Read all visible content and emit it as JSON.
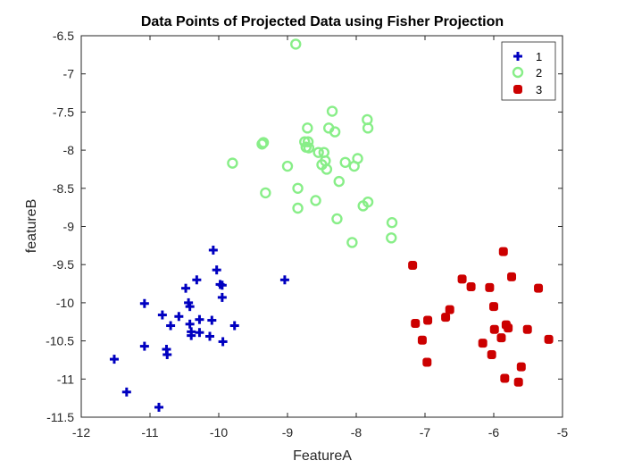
{
  "chart_data": {
    "type": "scatter",
    "title": "Data Points of Projected Data using Fisher Projection",
    "xlabel": "FeatureA",
    "ylabel": "featureB",
    "xlim": [
      -12,
      -5
    ],
    "ylim": [
      -11.5,
      -6.5
    ],
    "xticks": [
      "-12",
      "-11",
      "-10",
      "-9",
      "-8",
      "-7",
      "-6",
      "-5"
    ],
    "yticks": [
      "-6.5",
      "-7",
      "-7.5",
      "-8",
      "-8.5",
      "-9",
      "-9.5",
      "-10",
      "-10.5",
      "-11",
      "-11.5"
    ],
    "grid": false,
    "legend_position": "top-right",
    "series": [
      {
        "name": "1",
        "marker": "plus",
        "color": "#0000c0",
        "points": [
          [
            -11.52,
            -10.74
          ],
          [
            -11.34,
            -11.17
          ],
          [
            -11.08,
            -10.01
          ],
          [
            -11.08,
            -10.57
          ],
          [
            -10.87,
            -11.37
          ],
          [
            -10.82,
            -10.16
          ],
          [
            -10.76,
            -10.61
          ],
          [
            -10.75,
            -10.68
          ],
          [
            -10.7,
            -10.3
          ],
          [
            -10.58,
            -10.18
          ],
          [
            -10.48,
            -9.81
          ],
          [
            -10.44,
            -10.0
          ],
          [
            -10.42,
            -10.05
          ],
          [
            -10.42,
            -10.28
          ],
          [
            -10.4,
            -10.38
          ],
          [
            -10.4,
            -10.43
          ],
          [
            -10.32,
            -9.7
          ],
          [
            -10.28,
            -10.22
          ],
          [
            -10.28,
            -10.39
          ],
          [
            -10.13,
            -10.44
          ],
          [
            -10.1,
            -10.23
          ],
          [
            -10.08,
            -9.31
          ],
          [
            -10.03,
            -9.57
          ],
          [
            -9.98,
            -9.76
          ],
          [
            -9.95,
            -9.77
          ],
          [
            -9.95,
            -9.93
          ],
          [
            -9.94,
            -10.51
          ],
          [
            -9.77,
            -10.3
          ],
          [
            -9.04,
            -9.7
          ]
        ]
      },
      {
        "name": "2",
        "marker": "circle",
        "color": "#88ee88",
        "points": [
          [
            -9.8,
            -8.17
          ],
          [
            -9.37,
            -7.92
          ],
          [
            -9.35,
            -7.9
          ],
          [
            -9.32,
            -8.56
          ],
          [
            -9.0,
            -8.21
          ],
          [
            -8.88,
            -6.61
          ],
          [
            -8.85,
            -8.5
          ],
          [
            -8.85,
            -8.76
          ],
          [
            -8.75,
            -7.89
          ],
          [
            -8.73,
            -7.96
          ],
          [
            -8.71,
            -7.71
          ],
          [
            -8.7,
            -7.89
          ],
          [
            -8.69,
            -7.97
          ],
          [
            -8.59,
            -8.66
          ],
          [
            -8.55,
            -8.03
          ],
          [
            -8.5,
            -8.19
          ],
          [
            -8.47,
            -8.03
          ],
          [
            -8.45,
            -8.14
          ],
          [
            -8.43,
            -8.25
          ],
          [
            -8.4,
            -7.71
          ],
          [
            -8.35,
            -7.49
          ],
          [
            -8.31,
            -7.76
          ],
          [
            -8.28,
            -8.9
          ],
          [
            -8.25,
            -8.41
          ],
          [
            -8.16,
            -8.16
          ],
          [
            -8.06,
            -9.21
          ],
          [
            -8.03,
            -8.21
          ],
          [
            -7.98,
            -8.11
          ],
          [
            -7.9,
            -8.73
          ],
          [
            -7.84,
            -7.6
          ],
          [
            -7.83,
            -7.71
          ],
          [
            -7.83,
            -8.68
          ],
          [
            -7.48,
            -8.95
          ],
          [
            -7.49,
            -9.15
          ]
        ]
      },
      {
        "name": "3",
        "marker": "square",
        "color": "#cc0000",
        "points": [
          [
            -7.18,
            -9.51
          ],
          [
            -7.14,
            -10.27
          ],
          [
            -7.04,
            -10.49
          ],
          [
            -6.97,
            -10.78
          ],
          [
            -6.96,
            -10.23
          ],
          [
            -6.7,
            -10.19
          ],
          [
            -6.64,
            -10.09
          ],
          [
            -6.46,
            -9.69
          ],
          [
            -6.33,
            -9.79
          ],
          [
            -6.16,
            -10.53
          ],
          [
            -6.06,
            -9.8
          ],
          [
            -6.03,
            -10.68
          ],
          [
            -6.0,
            -10.05
          ],
          [
            -5.99,
            -10.35
          ],
          [
            -5.89,
            -10.46
          ],
          [
            -5.86,
            -9.33
          ],
          [
            -5.84,
            -10.99
          ],
          [
            -5.82,
            -10.29
          ],
          [
            -5.79,
            -10.33
          ],
          [
            -5.74,
            -9.66
          ],
          [
            -5.64,
            -11.04
          ],
          [
            -5.6,
            -10.84
          ],
          [
            -5.51,
            -10.35
          ],
          [
            -5.35,
            -9.81
          ],
          [
            -5.2,
            -10.48
          ]
        ]
      }
    ]
  }
}
